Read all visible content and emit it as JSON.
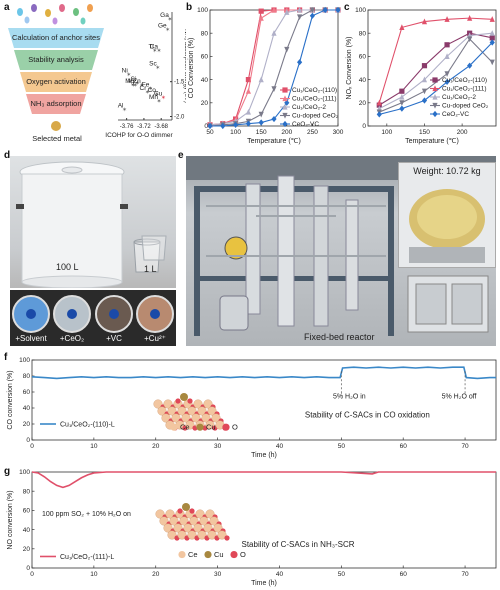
{
  "panel_letters": {
    "a": "a",
    "b": "b",
    "c": "c",
    "d": "d",
    "e": "e",
    "f": "f",
    "g": "g"
  },
  "panel_a": {
    "funnel_layers": [
      "Calculation of anchor sites",
      "Stability analysis",
      "Oxygen activation",
      "NH₃ adsorption"
    ],
    "selected_metal_label": "Selected metal",
    "scatter_x_label": "ICOHP for O-O dimmer",
    "scatter_y_label": "NH₃ adsorption energy (eV)",
    "x_ticks": [
      "-3.76",
      "-3.72",
      "-3.68"
    ],
    "y_ticks": [
      "-1.5",
      "-2.0"
    ],
    "points": [
      {
        "label": "Ga",
        "x": -3.66,
        "y": -0.6
      },
      {
        "label": "Ge",
        "x": -3.665,
        "y": -0.75
      },
      {
        "label": "Ti",
        "x": -3.695,
        "y": -1.05
      },
      {
        "label": "Ca",
        "x": -3.685,
        "y": -1.05
      },
      {
        "label": "Sc",
        "x": -3.688,
        "y": -1.3
      },
      {
        "label": "Ni",
        "x": -3.755,
        "y": -1.4
      },
      {
        "label": "V",
        "x": -3.745,
        "y": -1.55
      },
      {
        "label": "Mg",
        "x": -3.74,
        "y": -1.55
      },
      {
        "label": "Si",
        "x": -3.735,
        "y": -1.52
      },
      {
        "label": "Zn",
        "x": -3.725,
        "y": -1.55
      },
      {
        "label": "Fe",
        "x": -3.705,
        "y": -1.6
      },
      {
        "label": "Cr",
        "x": -3.712,
        "y": -1.65
      },
      {
        "label": "Co",
        "x": -3.69,
        "y": -1.68
      },
      {
        "label": "Cu",
        "x": -3.675,
        "y": -1.73
      },
      {
        "label": "Mn",
        "x": -3.685,
        "y": -1.78
      },
      {
        "label": "Al",
        "x": -3.765,
        "y": -1.9
      }
    ]
  },
  "panel_b": {
    "chart_data": {
      "type": "line",
      "xlabel": "Temperature (℃)",
      "ylabel": "CO Conversion (%)",
      "xlim": [
        50,
        300
      ],
      "ylim": [
        0,
        100
      ],
      "xticks": [
        "50",
        "100",
        "150",
        "200",
        "250",
        "300"
      ],
      "yticks": [
        "0",
        "20",
        "40",
        "60",
        "80",
        "100"
      ],
      "series": [
        {
          "name": "Cu₁/CeO₂-(110)",
          "color": "#e0506a",
          "marker": "square",
          "x": [
            50,
            75,
            100,
            125,
            150,
            175,
            200,
            225,
            250,
            275,
            300
          ],
          "y": [
            1,
            2,
            6,
            40,
            99,
            100,
            100,
            100,
            100,
            100,
            100
          ]
        },
        {
          "name": "Cu₁/CeO₂-(111)",
          "color": "#f07a8a",
          "marker": "triangle",
          "x": [
            50,
            75,
            100,
            125,
            150,
            175,
            200,
            225,
            250,
            275,
            300
          ],
          "y": [
            1,
            2,
            5,
            30,
            93,
            100,
            100,
            100,
            100,
            100,
            100
          ]
        },
        {
          "name": "Cu₁/CeO₂-2",
          "color": "#b0b0c8",
          "marker": "triangle",
          "x": [
            50,
            75,
            100,
            125,
            150,
            175,
            200,
            225,
            250,
            275,
            300
          ],
          "y": [
            1,
            2,
            4,
            12,
            40,
            80,
            98,
            100,
            100,
            100,
            100
          ]
        },
        {
          "name": "Cu-doped CeO₂",
          "color": "#7a7a8a",
          "marker": "triangle-down",
          "x": [
            50,
            75,
            100,
            125,
            150,
            175,
            200,
            225,
            250,
            275,
            300
          ],
          "y": [
            0,
            1,
            2,
            4,
            10,
            32,
            66,
            94,
            100,
            100,
            100
          ]
        },
        {
          "name": "CeO₂-VC",
          "color": "#2a70c8",
          "marker": "diamond",
          "x": [
            50,
            75,
            100,
            125,
            150,
            175,
            200,
            225,
            250,
            275,
            300
          ],
          "y": [
            0,
            0,
            1,
            2,
            3,
            6,
            20,
            55,
            95,
            100,
            100
          ]
        }
      ]
    }
  },
  "panel_c": {
    "chart_data": {
      "type": "line",
      "xlabel": "Temperature (℃)",
      "ylabel": "NOₓ Conversion (%)",
      "xlim": [
        75,
        245
      ],
      "ylim": [
        0,
        100
      ],
      "xticks": [
        "100",
        "150",
        "200"
      ],
      "yticks": [
        "0",
        "20",
        "40",
        "60",
        "80",
        "100"
      ],
      "series": [
        {
          "name": "Cu₁/CeO₂-(110)",
          "color": "#8a3a6a",
          "marker": "square",
          "x": [
            90,
            120,
            150,
            180,
            210,
            240
          ],
          "y": [
            18,
            30,
            52,
            70,
            80,
            76
          ]
        },
        {
          "name": "Cu₁/CeO₂-(111)",
          "color": "#e0506a",
          "marker": "triangle",
          "x": [
            90,
            120,
            150,
            180,
            210,
            240
          ],
          "y": [
            20,
            85,
            90,
            92,
            93,
            92
          ]
        },
        {
          "name": "Cu₁/CeO₂-2",
          "color": "#b0b0c8",
          "marker": "triangle",
          "x": [
            90,
            120,
            150,
            180,
            210,
            240
          ],
          "y": [
            15,
            25,
            40,
            60,
            78,
            80
          ]
        },
        {
          "name": "Cu-doped CeO₂",
          "color": "#7a7a8a",
          "marker": "triangle-down",
          "x": [
            90,
            120,
            150,
            180,
            210,
            240
          ],
          "y": [
            12,
            20,
            30,
            45,
            75,
            55
          ]
        },
        {
          "name": "CeO₂-VC",
          "color": "#2a70c8",
          "marker": "diamond",
          "x": [
            90,
            120,
            150,
            180,
            210,
            240
          ],
          "y": [
            10,
            15,
            22,
            38,
            52,
            72
          ]
        }
      ]
    }
  },
  "panel_d": {
    "big_vessel_label": "100 L",
    "small_vessel_label": "1 L",
    "dishes": [
      "+Solvent",
      "+CeO₂",
      "+VC",
      "+Cu²⁺"
    ]
  },
  "panel_e": {
    "reactor_label": "Fixed-bed reactor",
    "weight_label": "Weight: 10.72 kg"
  },
  "panel_f": {
    "chart_data": {
      "type": "line",
      "xlabel": "Time (h)",
      "ylabel": "CO conversion (%)",
      "xlim": [
        0,
        75
      ],
      "ylim": [
        0,
        100
      ],
      "xticks": [
        "0",
        "10",
        "20",
        "30",
        "40",
        "50",
        "60",
        "70"
      ],
      "yticks": [
        "0",
        "20",
        "40",
        "60",
        "80",
        "100"
      ],
      "series": [
        {
          "name": "Cu₁/CeO₂-(110)-L",
          "color": "#3a88c8",
          "x": [
            0,
            2,
            4,
            6,
            8,
            10,
            12,
            14,
            16,
            18,
            20,
            22,
            24,
            26,
            28,
            30,
            32,
            34,
            36,
            38,
            40,
            42,
            44,
            46,
            48,
            49.8,
            50.2,
            52,
            54,
            56,
            58,
            60,
            62,
            64,
            66,
            68,
            69.8,
            70.2,
            72,
            74,
            75
          ],
          "y": [
            79,
            78,
            77,
            78,
            79,
            78,
            79,
            78,
            78,
            79,
            78,
            79,
            78,
            79,
            78,
            79,
            78,
            79,
            78,
            79,
            78,
            79,
            78,
            79,
            78,
            78,
            90,
            91,
            90,
            91,
            90,
            91,
            90,
            91,
            90,
            91,
            91,
            78,
            77,
            78,
            78
          ]
        }
      ]
    },
    "annotation_on": "5% H₂O in",
    "annotation_off": "5% H₂O off",
    "stability_text": "Stability of C-SACs in CO oxidation",
    "atom_legend": [
      "Ce",
      "Cu",
      "O"
    ]
  },
  "panel_g": {
    "chart_data": {
      "type": "line",
      "xlabel": "Time (h)",
      "ylabel": "NO conversion (%)",
      "xlim": [
        0,
        75
      ],
      "ylim": [
        0,
        100
      ],
      "xticks": [
        "0",
        "10",
        "20",
        "30",
        "40",
        "50",
        "60",
        "70"
      ],
      "yticks": [
        "0",
        "20",
        "40",
        "60",
        "80",
        "100"
      ],
      "series": [
        {
          "name": "Cu₁/CeO₂-(111)-L",
          "color": "#e0506a",
          "x": [
            0,
            1,
            2,
            3,
            4,
            5,
            6,
            7,
            8,
            9,
            10,
            12,
            14,
            20,
            30,
            40,
            50,
            55,
            56,
            60,
            65,
            70,
            75
          ],
          "y": [
            100,
            99,
            95,
            90,
            86,
            84,
            86,
            90,
            94,
            97,
            99,
            100,
            100,
            100,
            100,
            100,
            100,
            98,
            100,
            100,
            100,
            100,
            100
          ]
        }
      ]
    },
    "annotation": "100 ppm SO₂ + 10% H₂O on",
    "stability_text": "Stability of C-SACs in NH₃-SCR",
    "atom_legend": [
      "Ce",
      "Cu",
      "O"
    ]
  },
  "colors": {
    "ce": "#f2c6a0",
    "cu": "#a88840",
    "o": "#e04858"
  }
}
